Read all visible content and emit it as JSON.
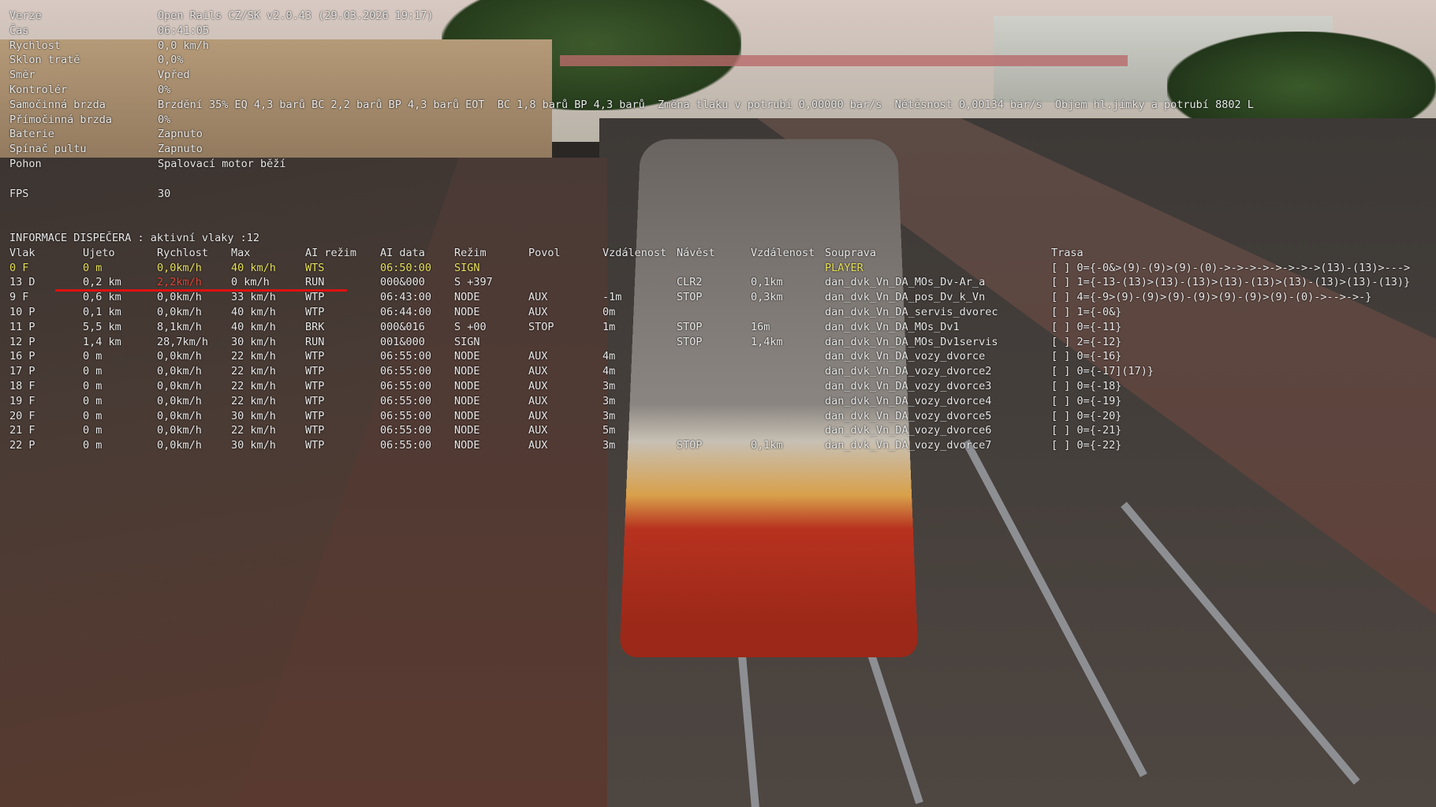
{
  "info": [
    {
      "label": "Verze",
      "value": "Open Rails CZ/SK v2.0.43 (29.03.2026 19:17)"
    },
    {
      "label": "Čas",
      "value": "06:41:05"
    },
    {
      "label": "Rychlost",
      "value": "0,0 km/h"
    },
    {
      "label": "Sklon tratě",
      "value": "0,0%"
    },
    {
      "label": "Směr",
      "value": "Vpřed"
    },
    {
      "label": "Kontrolér",
      "value": "0%"
    },
    {
      "label": "Samočinná brzda",
      "value": "Brzdění 35% EQ 4,3 barů BC 2,2 barů BP 4,3 barů EOT  BC 1,8 barů BP 4,3 barů  Změna tlaku v potrubí 0,00000 bar/s  Nětěsnost 0,00134 bar/s  Objem hl.jímky a potrubí 8802 L"
    },
    {
      "label": "Přímočinná brzda",
      "value": "0%"
    },
    {
      "label": "Baterie",
      "value": "Zapnuto"
    },
    {
      "label": "Spínač pultu",
      "value": "Zapnuto"
    },
    {
      "label": "Pohon",
      "value": "Spalovací motor běží"
    },
    {
      "label": "",
      "value": ""
    },
    {
      "label": "FPS",
      "value": "30"
    }
  ],
  "dispatcher": {
    "title": "INFORMACE DISPEČERA : aktivní vlaky :12",
    "columns": [
      "Vlak",
      "Ujeto",
      "Rychlost",
      "Max",
      "AI režim",
      "AI data",
      "Režim",
      "Povol",
      "Vzdálenost",
      "Návěst",
      "Vzdálenost",
      "Souprava",
      "Trasa"
    ],
    "rows": [
      [
        "0 F",
        "0 m",
        "0,0km/h",
        "40 km/h",
        "WTS",
        "06:50:00",
        "SIGN",
        "",
        "",
        "",
        "",
        "PLAYER",
        "[ ] 0={-0&>(9)-(9)>(9)-(0)->->->->->->->->(13)-(13)>--->"
      ],
      [
        "13 D",
        "0,2 km",
        "2,2km/h",
        "0 km/h",
        "RUN",
        "000&000",
        "S +397",
        "",
        "",
        "CLR2",
        "0,1km",
        "dan_dvk_Vn_DA_MOs_Dv-Ar_a",
        "[ ] 1={-13-(13)>(13)-(13)>(13)-(13)>(13)-(13)>(13)-(13)}"
      ],
      [
        "9 F",
        "0,6 km",
        "0,0km/h",
        "33 km/h",
        "WTP",
        "06:43:00",
        "NODE",
        "AUX",
        "-1m",
        "STOP",
        "0,3km",
        "dan_dvk_Vn_DA_pos_Dv_k_Vn",
        "[ ] 4={-9>(9)-(9)>(9)-(9)>(9)-(9)>(9)-(0)->-->->-}"
      ],
      [
        "10 P",
        "0,1 km",
        "0,0km/h",
        "40 km/h",
        "WTP",
        "06:44:00",
        "NODE",
        "AUX",
        "0m",
        "",
        "",
        "dan_dvk_Vn_DA_servis_dvorec",
        "[ ] 1={-0&}"
      ],
      [
        "11 P",
        "5,5 km",
        "8,1km/h",
        "40 km/h",
        "BRK",
        "000&016",
        "S +00",
        "STOP",
        "1m",
        "STOP",
        "16m",
        "dan_dvk_Vn_DA_MOs_Dv1",
        "[ ] 0={-11}"
      ],
      [
        "12 P",
        "1,4 km",
        "28,7km/h",
        "30 km/h",
        "RUN",
        "001&000",
        "SIGN",
        "",
        "",
        "STOP",
        "1,4km",
        "dan_dvk_Vn_DA_MOs_Dv1servis",
        "[ ] 2={-12}"
      ],
      [
        "16 P",
        "0 m",
        "0,0km/h",
        "22 km/h",
        "WTP",
        "06:55:00",
        "NODE",
        "AUX",
        "4m",
        "",
        "",
        "dan_dvk_Vn_DA_vozy_dvorce",
        "[ ] 0={-16}"
      ],
      [
        "17 P",
        "0 m",
        "0,0km/h",
        "22 km/h",
        "WTP",
        "06:55:00",
        "NODE",
        "AUX",
        "4m",
        "",
        "",
        "dan_dvk_Vn_DA_vozy_dvorce2",
        "[ ] 0={-17](17)}"
      ],
      [
        "18 F",
        "0 m",
        "0,0km/h",
        "22 km/h",
        "WTP",
        "06:55:00",
        "NODE",
        "AUX",
        "3m",
        "",
        "",
        "dan_dvk_Vn_DA_vozy_dvorce3",
        "[ ] 0={-18}"
      ],
      [
        "19 F",
        "0 m",
        "0,0km/h",
        "22 km/h",
        "WTP",
        "06:55:00",
        "NODE",
        "AUX",
        "3m",
        "",
        "",
        "dan_dvk_Vn_DA_vozy_dvorce4",
        "[ ] 0={-19}"
      ],
      [
        "20 F",
        "0 m",
        "0,0km/h",
        "30 km/h",
        "WTP",
        "06:55:00",
        "NODE",
        "AUX",
        "3m",
        "",
        "",
        "dan_dvk_Vn_DA_vozy_dvorce5",
        "[ ] 0={-20}"
      ],
      [
        "21 F",
        "0 m",
        "0,0km/h",
        "22 km/h",
        "WTP",
        "06:55:00",
        "NODE",
        "AUX",
        "5m",
        "",
        "",
        "dan_dvk_Vn_DA_vozy_dvorce6",
        "[ ] 0={-21}"
      ],
      [
        "22 P",
        "0 m",
        "0,0km/h",
        "30 km/h",
        "WTP",
        "06:55:00",
        "NODE",
        "AUX",
        "3m",
        "STOP",
        "0,1km",
        "dan_dvk_Vn_DA_vozy_dvorce7",
        "[ ] 0={-22}"
      ]
    ]
  },
  "colors": {
    "text": "#e8e8e8",
    "player": "#e6e05a",
    "highlight": "#e0483a",
    "underline": "#e01010"
  }
}
